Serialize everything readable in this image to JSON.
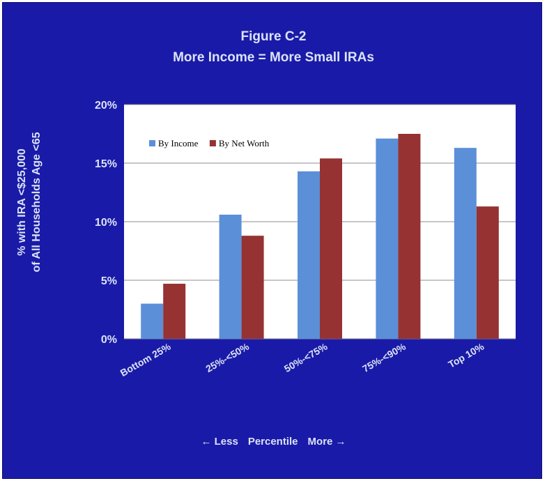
{
  "chart_data": {
    "type": "bar",
    "title": "Figure  C-2",
    "subtitle": "More Income = More Small IRAs",
    "ylabel_line1": "% with IRA <$25,000",
    "ylabel_line2": "of All Households Age <65",
    "xlabel_left": "← Less",
    "xlabel_center": "Percentile",
    "xlabel_right": "More →",
    "categories": [
      "Bottom 25%",
      "25%-<50%",
      "50%-<75%",
      "75%-<90%",
      "Top 10%"
    ],
    "series": [
      {
        "name": "By Income",
        "color": "#5b8fd8",
        "values": [
          3.0,
          10.6,
          14.3,
          17.1,
          16.3
        ]
      },
      {
        "name": "By Net Worth",
        "color": "#963232",
        "values": [
          4.7,
          8.8,
          15.4,
          17.5,
          11.3
        ]
      }
    ],
    "yticks": [
      "0%",
      "5%",
      "10%",
      "15%",
      "20%"
    ],
    "ylim": [
      0,
      20
    ],
    "grid": true,
    "legend_position": "top-left",
    "background": "#1a1aa8",
    "plot_background": "#ffffff"
  }
}
